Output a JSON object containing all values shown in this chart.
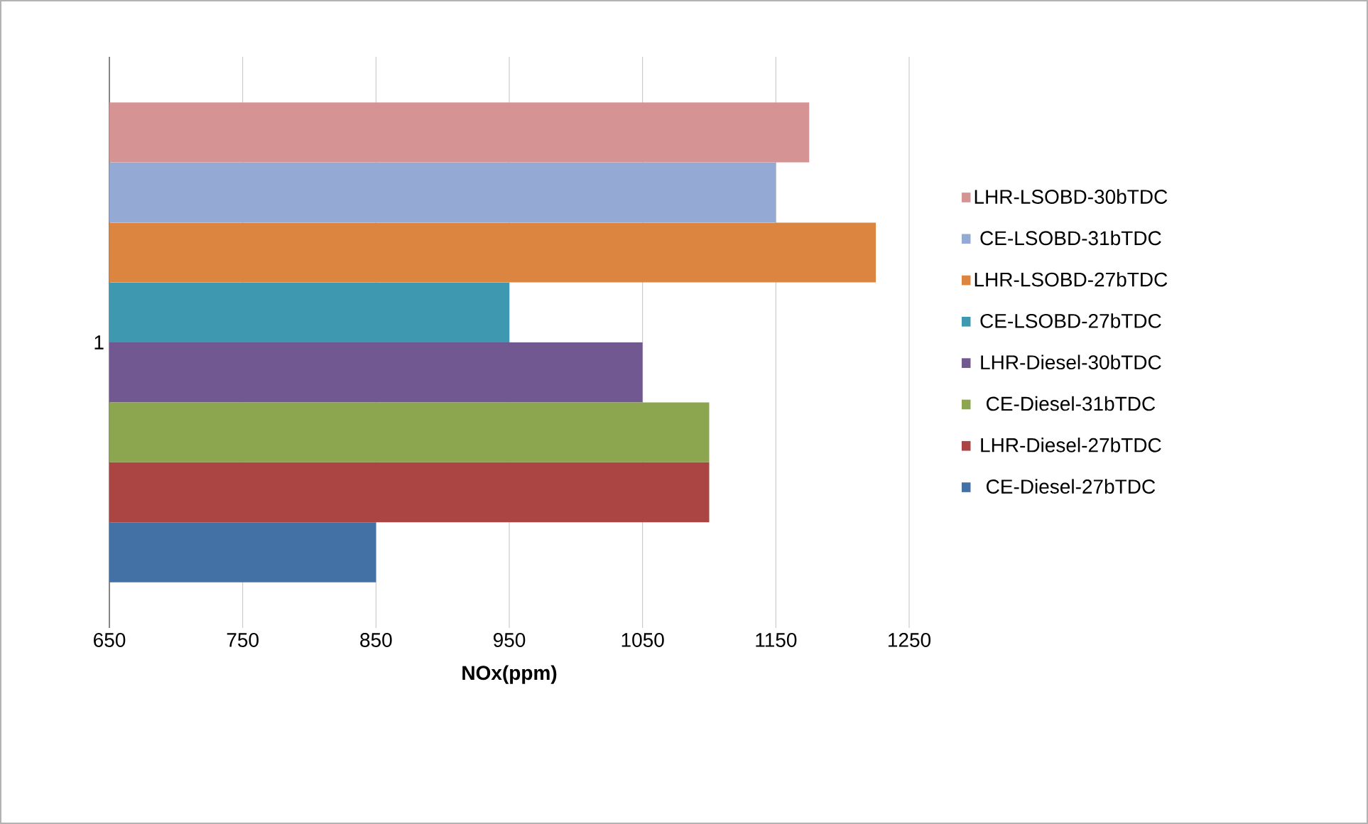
{
  "chart_data": {
    "type": "bar",
    "orientation": "horizontal",
    "xlabel": "NOx(ppm)",
    "categories": [
      "1"
    ],
    "series": [
      {
        "name": "LHR-LSOBD-30bTDC",
        "color": "#d59393",
        "values": [
          1175
        ]
      },
      {
        "name": "CE-LSOBD-31bTDC",
        "color": "#94a9d3",
        "values": [
          1150
        ]
      },
      {
        "name": "LHR-LSOBD-27bTDC",
        "color": "#dc8540",
        "values": [
          1225
        ]
      },
      {
        "name": "CE-LSOBD-27bTDC",
        "color": "#3e98b0",
        "values": [
          950
        ]
      },
      {
        "name": "LHR-Diesel-30bTDC",
        "color": "#725890",
        "values": [
          1050
        ]
      },
      {
        "name": "CE-Diesel-31bTDC",
        "color": "#8ca64f",
        "values": [
          1100
        ]
      },
      {
        "name": "LHR-Diesel-27bTDC",
        "color": "#ab4543",
        "values": [
          1100
        ]
      },
      {
        "name": "CE-Diesel-27bTDC",
        "color": "#4471a5",
        "values": [
          850
        ]
      }
    ],
    "xlim": [
      650,
      1250
    ],
    "xticks": [
      650,
      750,
      850,
      950,
      1050,
      1150,
      1250
    ],
    "grid": "x",
    "legend": "right"
  }
}
